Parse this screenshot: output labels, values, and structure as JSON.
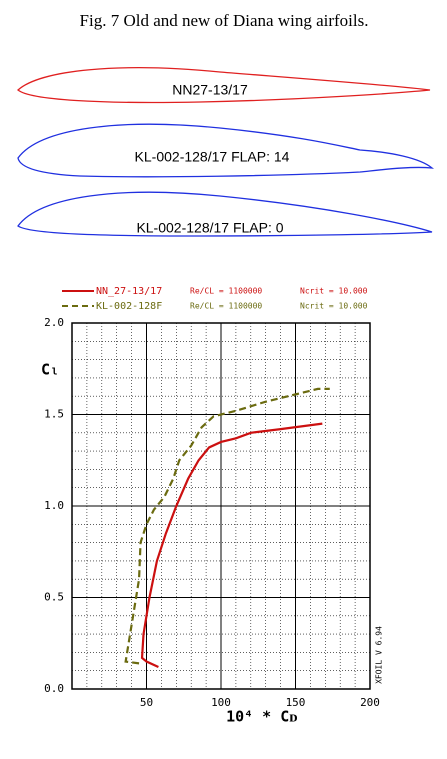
{
  "header": {
    "title": "Fig. 7  Old and new of Diana wing airfoils."
  },
  "airfoils": [
    {
      "label": "NN27-13/17"
    },
    {
      "label": "KL-002-128/17  FLAP: 14"
    },
    {
      "label": "KL-002-128/17  FLAP: 0"
    }
  ],
  "chart_data": {
    "type": "line",
    "xlabel": "10⁴ * Cᴅ",
    "ylabel": "Cₗ",
    "watermark": "XFOIL V 6.94",
    "xlim": [
      0,
      200
    ],
    "xticks": [
      50,
      100,
      150,
      200
    ],
    "ylim": [
      0,
      2
    ],
    "yticks": [
      {
        "value": 0,
        "label": "0.0"
      },
      {
        "value": 0.5,
        "label": "0.5"
      },
      {
        "value": 1,
        "label": "1.0"
      },
      {
        "value": 1.5,
        "label": "1.5"
      },
      {
        "value": 2,
        "label": "2.0"
      }
    ],
    "grid": true,
    "series": [
      {
        "name": "NN_27-13/17",
        "re_label": "Re/CL = 1100000",
        "ncrit_label": "Ncrit = 10.000",
        "color": "#cc1010",
        "line_style": "solid",
        "x": [
          58,
          50,
          47,
          48,
          52,
          57,
          63,
          70,
          78,
          85,
          92,
          100,
          110,
          120,
          140,
          168
        ],
        "values": [
          0.12,
          0.15,
          0.17,
          0.3,
          0.5,
          0.7,
          0.85,
          1.0,
          1.15,
          1.25,
          1.32,
          1.35,
          1.37,
          1.4,
          1.42,
          1.45
        ]
      },
      {
        "name": "KL-002-128F",
        "re_label": "Re/CL = 1100000",
        "ncrit_label": "Ncrit = 10.000",
        "color": "#6b6b10",
        "line_style": "dashed",
        "x": [
          45,
          36,
          40,
          45,
          46,
          50,
          55,
          62,
          68,
          72,
          80,
          87,
          95,
          110,
          130,
          150,
          165,
          173
        ],
        "values": [
          0.14,
          0.15,
          0.35,
          0.6,
          0.8,
          0.9,
          0.98,
          1.05,
          1.15,
          1.25,
          1.33,
          1.43,
          1.49,
          1.52,
          1.57,
          1.61,
          1.64,
          1.64
        ]
      }
    ]
  }
}
